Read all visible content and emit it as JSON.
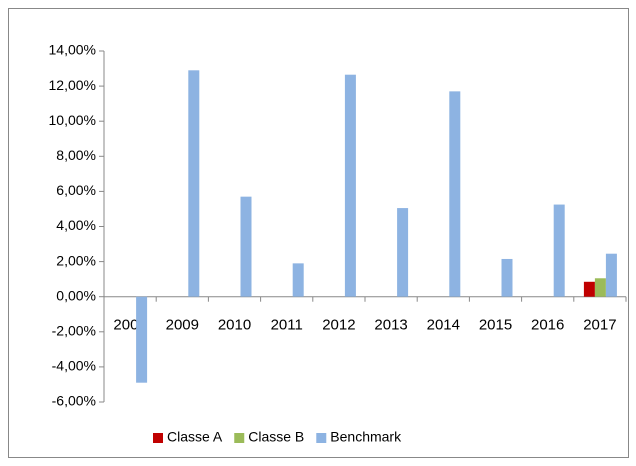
{
  "chart_data": {
    "type": "bar",
    "categories": [
      "2008",
      "2009",
      "2010",
      "2011",
      "2012",
      "2013",
      "2014",
      "2015",
      "2016",
      "2017"
    ],
    "series": [
      {
        "name": "Classe A",
        "color": "#c00000",
        "values": [
          null,
          null,
          null,
          null,
          null,
          null,
          null,
          null,
          null,
          0.85
        ]
      },
      {
        "name": "Classe B",
        "color": "#9bbb59",
        "values": [
          null,
          null,
          null,
          null,
          null,
          null,
          null,
          null,
          null,
          1.05
        ]
      },
      {
        "name": "Benchmark",
        "color": "#8db3e2",
        "values": [
          -4.9,
          12.9,
          5.7,
          1.9,
          12.65,
          5.05,
          11.7,
          2.15,
          5.25,
          2.45
        ]
      }
    ],
    "ylim": [
      -6,
      14
    ],
    "yticks": [
      {
        "value": -6,
        "label": "-6,00%"
      },
      {
        "value": -4,
        "label": "-4,00%"
      },
      {
        "value": -2,
        "label": "-2,00%"
      },
      {
        "value": 0,
        "label": "0,00%"
      },
      {
        "value": 2,
        "label": "2,00%"
      },
      {
        "value": 4,
        "label": "4,00%"
      },
      {
        "value": 6,
        "label": "6,00%"
      },
      {
        "value": 8,
        "label": "8,00%"
      },
      {
        "value": 10,
        "label": "10,00%"
      },
      {
        "value": 12,
        "label": "12,00%"
      },
      {
        "value": 14,
        "label": "14,00%"
      }
    ],
    "grid": false,
    "legend": "bottom"
  }
}
